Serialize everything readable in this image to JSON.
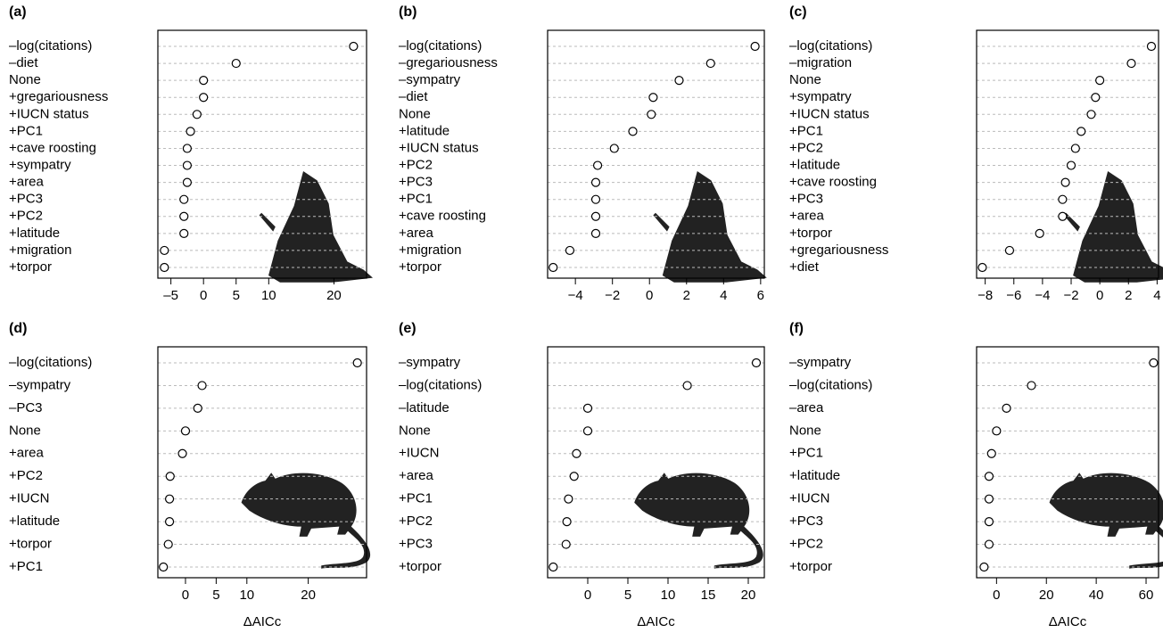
{
  "chart_data": [
    {
      "type": "dot",
      "label": "(a)",
      "grid": true,
      "categories": [
        "–log(citations)",
        "–diet",
        "None",
        "+gregariousness",
        "+IUCN status",
        "+PC1",
        "+cave roosting",
        "+sympatry",
        "+area",
        "+PC3",
        "+PC2",
        "+latitude",
        "+migration",
        "+torpor"
      ],
      "values": [
        23,
        5,
        0,
        0,
        -1,
        -2,
        -2.5,
        -2.5,
        -2.5,
        -3,
        -3,
        -3,
        -6,
        -6
      ],
      "xlim": [
        -7,
        25
      ],
      "xticks": [
        {
          "value": -5,
          "label": "–5"
        },
        0,
        5,
        10,
        20
      ]
    },
    {
      "type": "dot",
      "label": "(b)",
      "grid": true,
      "categories": [
        "–log(citations)",
        "–gregariousness",
        "–sympatry",
        "–diet",
        "None",
        "+latitude",
        "+IUCN status",
        "+PC2",
        "+PC3",
        "+PC1",
        "+cave roosting",
        "+area",
        "+migration",
        "+torpor"
      ],
      "values": [
        5.7,
        3.3,
        1.6,
        0.2,
        0.1,
        -0.9,
        -1.9,
        -2.8,
        -2.9,
        -2.9,
        -2.9,
        -2.9,
        -4.3,
        -5.2
      ],
      "xlim": [
        -5.5,
        6.2
      ],
      "xticks": [
        {
          "value": -4,
          "label": "−4"
        },
        {
          "value": -2,
          "label": "−2"
        },
        0,
        2,
        4,
        6
      ]
    },
    {
      "type": "dot",
      "label": "(c)",
      "grid": true,
      "categories": [
        "–log(citations)",
        "–migration",
        "None",
        "+sympatry",
        "+IUCN status",
        "+PC1",
        "+PC2",
        "+latitude",
        "+cave roosting",
        "+PC3",
        "+area",
        "+torpor",
        "+gregariousness",
        "+diet"
      ],
      "values": [
        3.6,
        2.2,
        0,
        -0.3,
        -0.6,
        -1.3,
        -1.7,
        -2,
        -2.4,
        -2.6,
        -2.6,
        -4.2,
        -6.3,
        -8.2
      ],
      "xlim": [
        -8.6,
        4.1
      ],
      "xticks": [
        {
          "value": -8,
          "label": "−8"
        },
        {
          "value": -6,
          "label": "−6"
        },
        {
          "value": -4,
          "label": "−4"
        },
        {
          "value": -2,
          "label": "−2"
        },
        0,
        2,
        4
      ]
    },
    {
      "type": "dot",
      "label": "(d)",
      "grid": true,
      "xlabel": "ΔAICc",
      "categories": [
        "–log(citations)",
        "–sympatry",
        "–PC3",
        "None",
        "+area",
        "+PC2",
        "+IUCN",
        "+latitude",
        "+torpor",
        "+PC1"
      ],
      "values": [
        28,
        2.7,
        2,
        0,
        -0.5,
        -2.5,
        -2.6,
        -2.6,
        -2.8,
        -3.6
      ],
      "xlim": [
        -4.5,
        29.5
      ],
      "xticks": [
        0,
        5,
        10,
        20
      ]
    },
    {
      "type": "dot",
      "label": "(e)",
      "grid": true,
      "xlabel": "ΔAICc",
      "categories": [
        "–sympatry",
        "–log(citations)",
        "–latitude",
        "None",
        "+IUCN",
        "+area",
        "+PC1",
        "+PC2",
        "+PC3",
        "+torpor"
      ],
      "values": [
        21,
        12.4,
        0,
        0,
        -1.4,
        -1.7,
        -2.4,
        -2.6,
        -2.7,
        -4.3
      ],
      "xlim": [
        -5,
        22
      ],
      "xticks": [
        0,
        5,
        10,
        15,
        20
      ]
    },
    {
      "type": "dot",
      "label": "(f)",
      "grid": true,
      "xlabel": "ΔAICc",
      "categories": [
        "–sympatry",
        "–log(citations)",
        "–area",
        "None",
        "+PC1",
        "+latitude",
        "+IUCN",
        "+PC3",
        "+PC2",
        "+torpor"
      ],
      "values": [
        63,
        14,
        4,
        0,
        -2,
        -3,
        -3,
        -3,
        -3,
        -5
      ],
      "xlim": [
        -8,
        65
      ],
      "xticks": [
        0,
        20,
        40,
        60
      ]
    }
  ]
}
